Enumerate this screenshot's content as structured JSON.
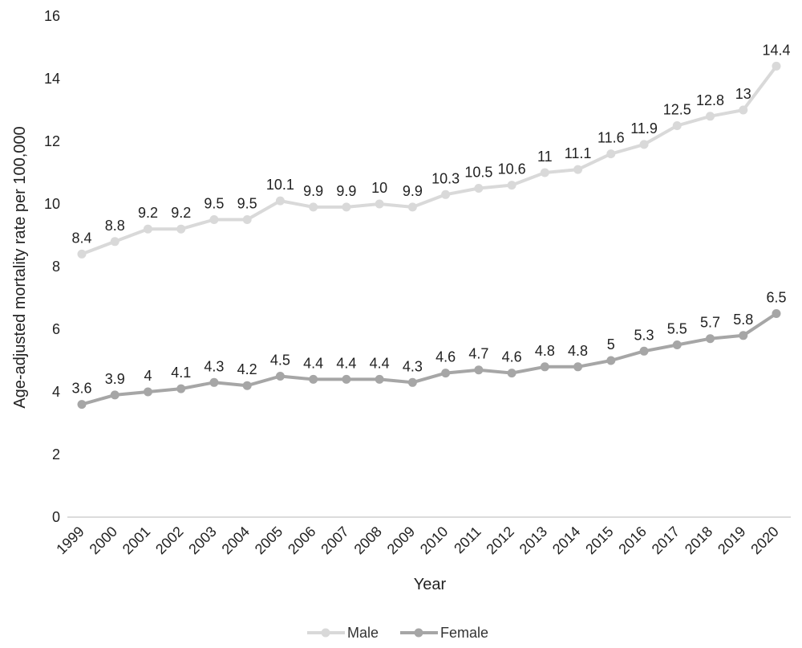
{
  "chart_data": {
    "type": "line",
    "title": "",
    "xlabel": "Year",
    "ylabel": "Age-adjusted mortality rate per 100,000",
    "ylim": [
      0,
      16
    ],
    "yticks": [
      "0",
      "2",
      "4",
      "6",
      "8",
      "10",
      "12",
      "14",
      "16"
    ],
    "categories": [
      "1999",
      "2000",
      "2001",
      "2002",
      "2003",
      "2004",
      "2005",
      "2006",
      "2007",
      "2008",
      "2009",
      "2010",
      "2011",
      "2012",
      "2013",
      "2014",
      "2015",
      "2016",
      "2017",
      "2018",
      "2019",
      "2020"
    ],
    "series": [
      {
        "name": "Male",
        "color": "#d9d9d9",
        "values": [
          8.4,
          8.8,
          9.2,
          9.2,
          9.5,
          9.5,
          10.1,
          9.9,
          9.9,
          10,
          9.9,
          10.3,
          10.5,
          10.6,
          11,
          11.1,
          11.6,
          11.9,
          12.5,
          12.8,
          13,
          14.4
        ],
        "labels": [
          "8.4",
          "8.8",
          "9.2",
          "9.2",
          "9.5",
          "9.5",
          "10.1",
          "9.9",
          "9.9",
          "10",
          "9.9",
          "10.3",
          "10.5",
          "10.6",
          "11",
          "11.1",
          "11.6",
          "11.9",
          "12.5",
          "12.8",
          "13",
          "14.4"
        ]
      },
      {
        "name": "Female",
        "color": "#a6a6a6",
        "values": [
          3.6,
          3.9,
          4,
          4.1,
          4.3,
          4.2,
          4.5,
          4.4,
          4.4,
          4.4,
          4.3,
          4.6,
          4.7,
          4.6,
          4.8,
          4.8,
          5,
          5.3,
          5.5,
          5.7,
          5.8,
          6.5
        ],
        "labels": [
          "3.6",
          "3.9",
          "4",
          "4.1",
          "4.3",
          "4.2",
          "4.5",
          "4.4",
          "4.4",
          "4.4",
          "4.3",
          "4.6",
          "4.7",
          "4.6",
          "4.8",
          "4.8",
          "5",
          "5.3",
          "5.5",
          "5.7",
          "5.8",
          "6.5"
        ]
      }
    ],
    "grid": false,
    "legend_position": "bottom-center"
  }
}
